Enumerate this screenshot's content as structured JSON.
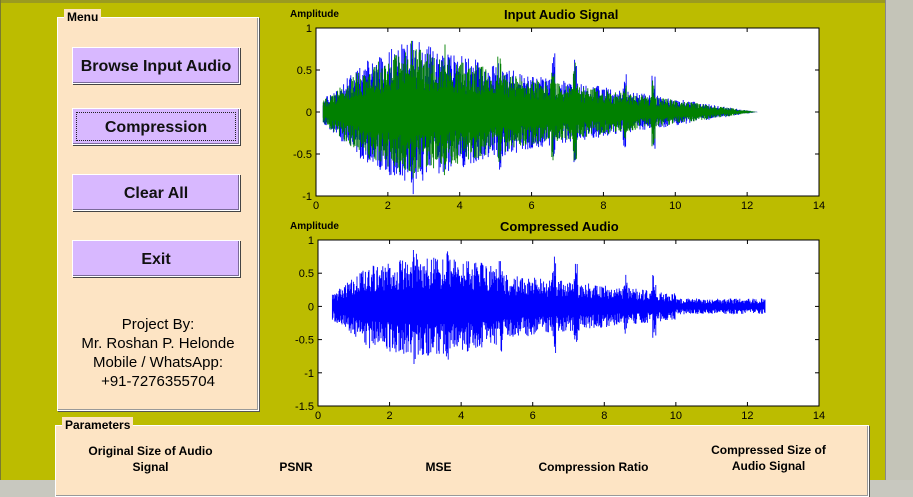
{
  "menu": {
    "title": "Menu",
    "buttons": [
      "Browse Input Audio",
      "Compression",
      "Clear All",
      "Exit"
    ],
    "credits": [
      "Project By:",
      "Mr. Roshan P. Helonde",
      "Mobile / WhatsApp:",
      "+91-7276355704"
    ]
  },
  "plots": {
    "input": {
      "title": "Input Audio Signal",
      "ylabel": "Amplitude",
      "xticks": [
        "0",
        "2",
        "4",
        "6",
        "8",
        "10",
        "12",
        "14"
      ],
      "yticks": [
        "1",
        "0.5",
        "0",
        "-0.5",
        "-1"
      ]
    },
    "compressed": {
      "title": "Compressed Audio",
      "ylabel": "Amplitude",
      "xticks": [
        "0",
        "2",
        "4",
        "6",
        "8",
        "10",
        "12",
        "14"
      ],
      "yticks": [
        "1",
        "0.5",
        "0",
        "-0.5",
        "-1",
        "-1.5"
      ]
    }
  },
  "parameters": {
    "title": "Parameters",
    "columns": [
      "Original Size of Audio Signal",
      "PSNR",
      "MSE",
      "Compression Ratio",
      "Compressed Size of Audio Signal"
    ]
  },
  "chart_data": [
    {
      "type": "line",
      "title": "Input Audio Signal",
      "ylabel": "Amplitude",
      "xlim": [
        0,
        14
      ],
      "ylim": [
        -1,
        1
      ],
      "series": [
        {
          "color": "#0000ff"
        },
        {
          "color": "#008000"
        }
      ]
    },
    {
      "type": "line",
      "title": "Compressed Audio",
      "ylabel": "Amplitude",
      "xlim": [
        0,
        14
      ],
      "ylim": [
        -1.5,
        1
      ],
      "series": [
        {
          "color": "#0000ff"
        }
      ]
    }
  ],
  "colors": {
    "frame": "#bcbc00",
    "panel": "#fde4c4",
    "button": "#d8b8ff",
    "signal_blue": "#0000ff",
    "signal_green": "#008000"
  }
}
